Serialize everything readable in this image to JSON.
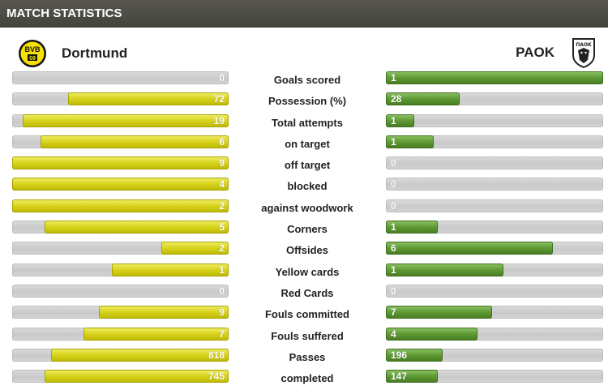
{
  "header": {
    "title": "MATCH STATISTICS"
  },
  "home_team": {
    "name": "Dortmund",
    "crest_text": "BVB 09",
    "color": "#f5e100"
  },
  "away_team": {
    "name": "PAOK",
    "crest_text": "ΠΑΟΚ",
    "color": "#222222"
  },
  "colors": {
    "home_bar": "#d7d21c",
    "away_bar": "#5e9a34",
    "track": "#cfcfcf",
    "header_bg": "#4a4a44"
  },
  "stats": [
    {
      "label": "Goals scored",
      "home": "0",
      "away": "1",
      "home_fraction": 0.0,
      "away_fraction": 1.0
    },
    {
      "label": "Possession (%)",
      "home": "72",
      "away": "28",
      "home_fraction": 0.74,
      "away_fraction": 0.34
    },
    {
      "label": "Total attempts",
      "home": "19",
      "away": "1",
      "home_fraction": 0.95,
      "away_fraction": 0.13
    },
    {
      "label": "on target",
      "home": "6",
      "away": "1",
      "home_fraction": 0.87,
      "away_fraction": 0.22
    },
    {
      "label": "off target",
      "home": "9",
      "away": "0",
      "home_fraction": 1.0,
      "away_fraction": 0.0
    },
    {
      "label": "blocked",
      "home": "4",
      "away": "0",
      "home_fraction": 1.0,
      "away_fraction": 0.0
    },
    {
      "label": "against woodwork",
      "home": "2",
      "away": "0",
      "home_fraction": 1.0,
      "away_fraction": 0.0
    },
    {
      "label": "Corners",
      "home": "5",
      "away": "1",
      "home_fraction": 0.85,
      "away_fraction": 0.24
    },
    {
      "label": "Offsides",
      "home": "2",
      "away": "6",
      "home_fraction": 0.31,
      "away_fraction": 0.77
    },
    {
      "label": "Yellow cards",
      "home": "1",
      "away": "1",
      "home_fraction": 0.54,
      "away_fraction": 0.54
    },
    {
      "label": "Red Cards",
      "home": "0",
      "away": "0",
      "home_fraction": 0.0,
      "away_fraction": 0.0
    },
    {
      "label": "Fouls committed",
      "home": "9",
      "away": "7",
      "home_fraction": 0.6,
      "away_fraction": 0.49
    },
    {
      "label": "Fouls suffered",
      "home": "7",
      "away": "4",
      "home_fraction": 0.67,
      "away_fraction": 0.42
    },
    {
      "label": "Passes",
      "home": "818",
      "away": "196",
      "home_fraction": 0.82,
      "away_fraction": 0.26
    },
    {
      "label": "completed",
      "home": "745",
      "away": "147",
      "home_fraction": 0.85,
      "away_fraction": 0.24
    }
  ]
}
